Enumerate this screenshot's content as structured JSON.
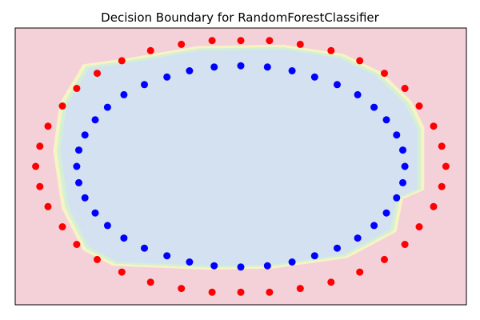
{
  "chart_data": {
    "type": "scatter",
    "title": "Decision Boundary for RandomForestClassifier",
    "xlabel": "",
    "ylabel": "",
    "xlim": [
      -1.1,
      1.1
    ],
    "ylim": [
      -1.1,
      1.1
    ],
    "show_ticks": false,
    "grid": false,
    "colors": {
      "outer_region": "#f4d0d9",
      "inner_region": "#d3e1f0",
      "boundary_band_1": "#f7f3c4",
      "boundary_band_2": "#d4f0d4",
      "outer_points": "#ff0000",
      "inner_points": "#0000ff"
    },
    "background_region_boundary": [
      [
        -0.74,
        0.78
      ],
      [
        -0.52,
        0.83
      ],
      [
        -0.2,
        0.92
      ],
      [
        0.2,
        0.93
      ],
      [
        0.48,
        0.86
      ],
      [
        0.66,
        0.72
      ],
      [
        0.8,
        0.5
      ],
      [
        0.86,
        0.3
      ],
      [
        0.86,
        -0.18
      ],
      [
        0.76,
        -0.25
      ],
      [
        0.73,
        -0.5
      ],
      [
        0.5,
        -0.7
      ],
      [
        0.15,
        -0.78
      ],
      [
        -0.15,
        -0.79
      ],
      [
        -0.6,
        -0.76
      ],
      [
        -0.74,
        -0.64
      ],
      [
        -0.84,
        -0.32
      ],
      [
        -0.88,
        0.12
      ],
      [
        -0.85,
        0.48
      ]
    ],
    "series": [
      {
        "class": 0,
        "color": "#ff0000",
        "points": [
          [
            1.0,
            0.0
          ],
          [
            0.98,
            0.16
          ],
          [
            0.94,
            0.32
          ],
          [
            0.87,
            0.48
          ],
          [
            0.8,
            0.62
          ],
          [
            0.7,
            0.74
          ],
          [
            0.58,
            0.84
          ],
          [
            0.44,
            0.92
          ],
          [
            0.29,
            0.97
          ],
          [
            0.14,
            1.0
          ],
          [
            0.0,
            1.0
          ],
          [
            -0.14,
            1.0
          ],
          [
            -0.29,
            0.97
          ],
          [
            -0.44,
            0.92
          ],
          [
            -0.58,
            0.84
          ],
          [
            -0.7,
            0.74
          ],
          [
            -0.8,
            0.62
          ],
          [
            -0.87,
            0.48
          ],
          [
            -0.94,
            0.32
          ],
          [
            -0.98,
            0.16
          ],
          [
            -1.0,
            0.0
          ],
          [
            -0.98,
            -0.16
          ],
          [
            -0.94,
            -0.32
          ],
          [
            -0.87,
            -0.48
          ],
          [
            -0.8,
            -0.62
          ],
          [
            -0.7,
            -0.74
          ],
          [
            -0.58,
            -0.84
          ],
          [
            -0.44,
            -0.92
          ],
          [
            -0.29,
            -0.97
          ],
          [
            -0.14,
            -1.0
          ],
          [
            0.0,
            -1.0
          ],
          [
            0.14,
            -1.0
          ],
          [
            0.29,
            -0.97
          ],
          [
            0.44,
            -0.92
          ],
          [
            0.58,
            -0.84
          ],
          [
            0.7,
            -0.74
          ],
          [
            0.8,
            -0.62
          ],
          [
            0.87,
            -0.48
          ],
          [
            0.94,
            -0.32
          ],
          [
            0.98,
            -0.16
          ]
        ]
      },
      {
        "class": 1,
        "color": "#0000ff",
        "points": [
          [
            0.8,
            0.0
          ],
          [
            0.79,
            0.13
          ],
          [
            0.76,
            0.25
          ],
          [
            0.71,
            0.37
          ],
          [
            0.65,
            0.47
          ],
          [
            0.57,
            0.57
          ],
          [
            0.47,
            0.65
          ],
          [
            0.36,
            0.71
          ],
          [
            0.25,
            0.76
          ],
          [
            0.13,
            0.79
          ],
          [
            0.0,
            0.8
          ],
          [
            -0.13,
            0.79
          ],
          [
            -0.25,
            0.76
          ],
          [
            -0.36,
            0.71
          ],
          [
            -0.47,
            0.65
          ],
          [
            -0.57,
            0.57
          ],
          [
            -0.65,
            0.47
          ],
          [
            -0.71,
            0.37
          ],
          [
            -0.76,
            0.25
          ],
          [
            -0.79,
            0.13
          ],
          [
            -0.8,
            0.0
          ],
          [
            -0.79,
            -0.13
          ],
          [
            -0.76,
            -0.25
          ],
          [
            -0.71,
            -0.37
          ],
          [
            -0.65,
            -0.47
          ],
          [
            -0.57,
            -0.57
          ],
          [
            -0.47,
            -0.65
          ],
          [
            -0.36,
            -0.71
          ],
          [
            -0.25,
            -0.76
          ],
          [
            -0.13,
            -0.79
          ],
          [
            0.0,
            -0.8
          ],
          [
            0.13,
            -0.79
          ],
          [
            0.25,
            -0.76
          ],
          [
            0.36,
            -0.71
          ],
          [
            0.47,
            -0.65
          ],
          [
            0.57,
            -0.57
          ],
          [
            0.65,
            -0.47
          ],
          [
            0.71,
            -0.37
          ],
          [
            0.76,
            -0.25
          ],
          [
            0.79,
            -0.13
          ]
        ]
      }
    ]
  }
}
